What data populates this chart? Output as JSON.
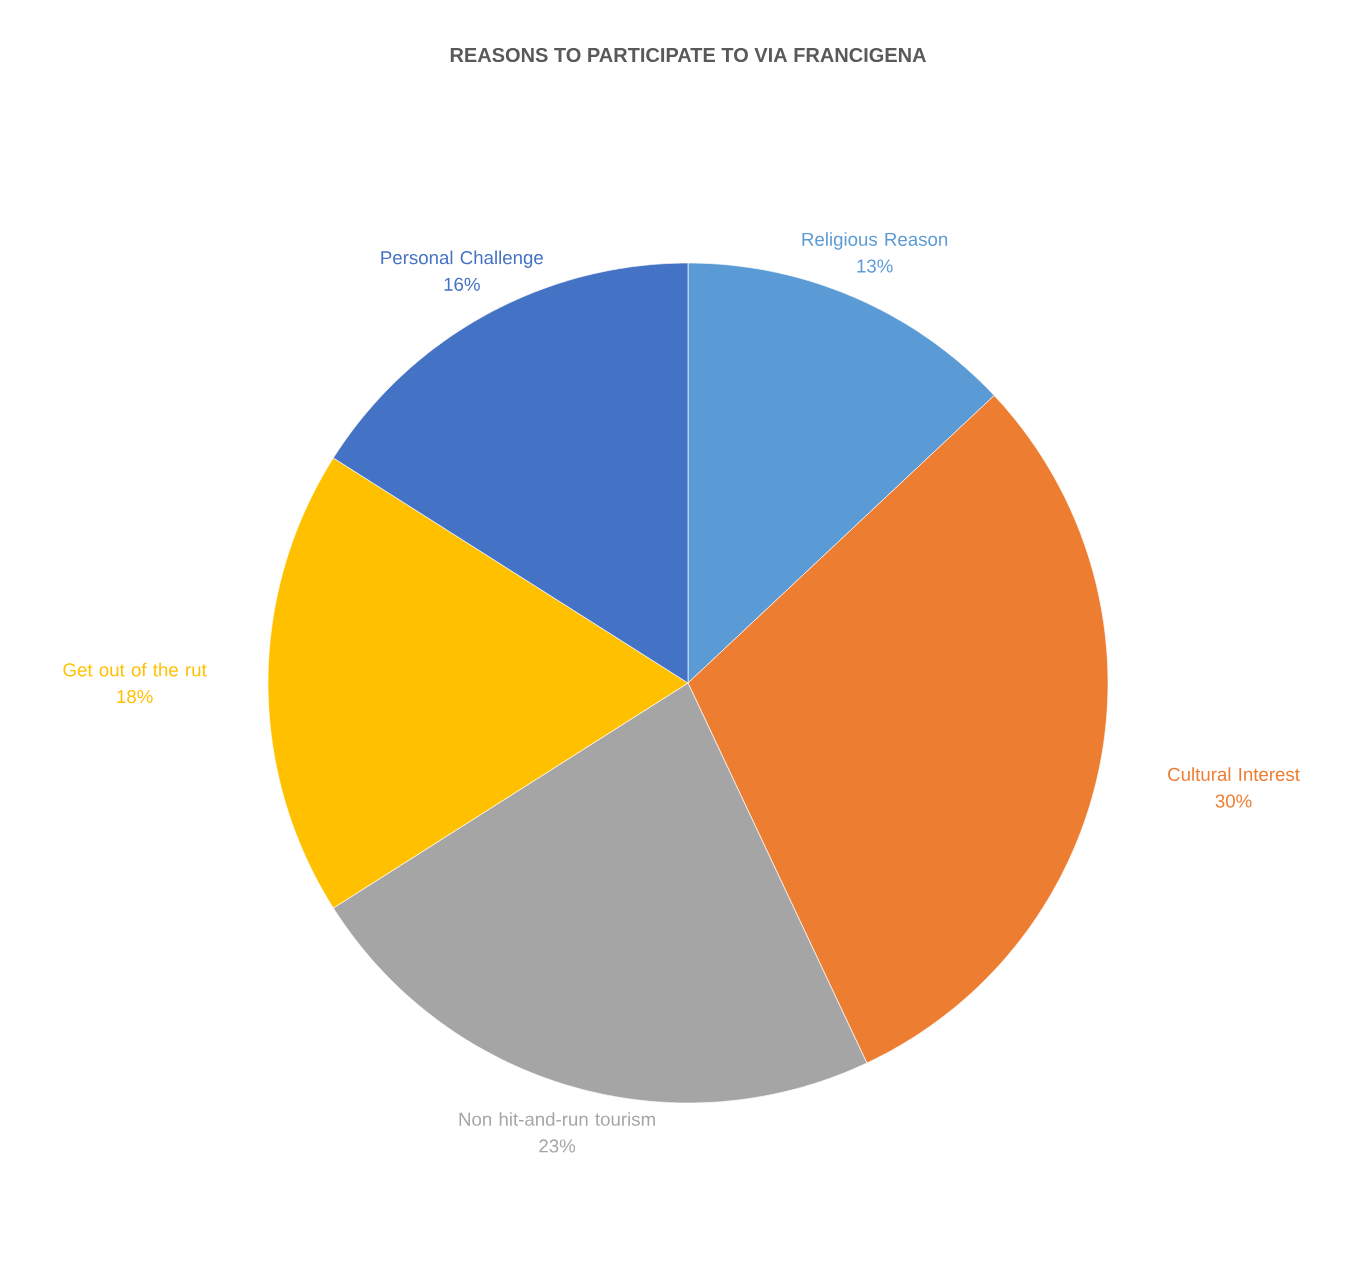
{
  "chart_data": {
    "type": "pie",
    "title": "REASONS TO PARTICIPATE TO VIA FRANCIGENA",
    "categories": [
      "Religious Reason",
      "Cultural Interest",
      "Non hit-and-run tourism",
      "Get out of the rut",
      "Personal Challenge"
    ],
    "values": [
      13,
      30,
      23,
      18,
      16
    ],
    "value_labels": [
      "13%",
      "30%",
      "23%",
      "18%",
      "16%"
    ],
    "colors": [
      "#5b9bd5",
      "#ed7d31",
      "#a5a5a5",
      "#ffc000",
      "#4472c4"
    ]
  }
}
